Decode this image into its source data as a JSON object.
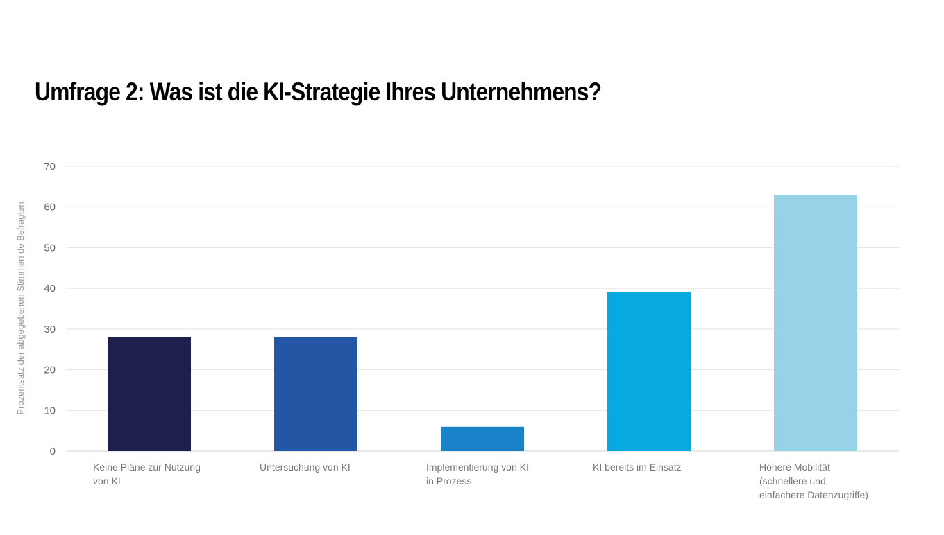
{
  "title": "Umfrage 2: Was ist die KI-Strategie Ihres Unternehmens?",
  "chart_data": {
    "type": "bar",
    "title": "Umfrage 2: Was ist die KI-Strategie Ihres Unternehmens?",
    "ylabel": "Prozentsatz der abgegebenen Stimmen de Befragten",
    "xlabel": "",
    "ylim": [
      0,
      70
    ],
    "yticks": [
      0,
      10,
      20,
      30,
      40,
      50,
      60,
      70
    ],
    "grid": true,
    "categories": [
      [
        "Keine Pläne zur Nutzung",
        "von KI"
      ],
      [
        "Untersuchung von KI"
      ],
      [
        "Implementierung von KI",
        "in Prozess"
      ],
      [
        "KI bereits im Einsatz"
      ],
      [
        "Höhere Mobilität",
        "(schnellere und",
        "einfachere Datenzugriffe)"
      ]
    ],
    "values": [
      28,
      28,
      6,
      39,
      63
    ],
    "colors": [
      "#1f1f4d",
      "#2456a6",
      "#1a82c8",
      "#08a8e0",
      "#97d3e8"
    ]
  }
}
